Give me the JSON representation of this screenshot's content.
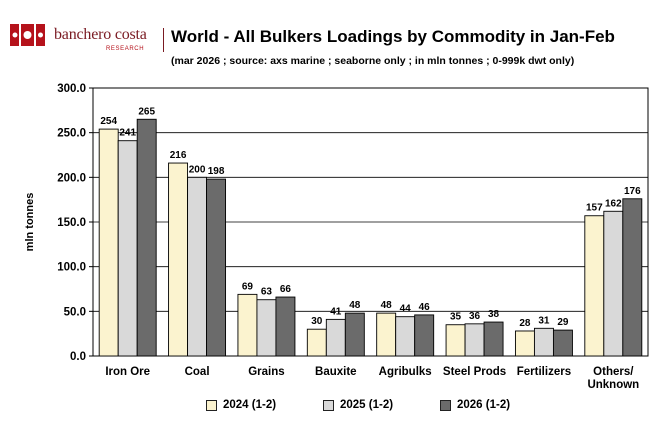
{
  "brand": {
    "name": "banchero costa",
    "tagline": "RESEARCH",
    "brand_color": "#b5121b"
  },
  "chart_data": {
    "type": "bar",
    "title": "World - All Bulkers Loadings by Commodity in Jan-Feb",
    "subtitle": "(mar 2026 ; source: axs marine ; seaborne only ; in mln tonnes ; 0-999k dwt only)",
    "xlabel": "",
    "ylabel": "mln tonnes",
    "ylim": [
      0,
      300
    ],
    "yticks": [
      "0.0",
      "50.0",
      "100.0",
      "150.0",
      "200.0",
      "250.0",
      "300.0"
    ],
    "grid": true,
    "legend_position": "bottom",
    "categories": [
      "Iron Ore",
      "Coal",
      "Grains",
      "Bauxite",
      "Agribulks",
      "Steel Prods",
      "Fertilizers",
      "Others/\nUnknown"
    ],
    "series": [
      {
        "name": "2024 (1-2)",
        "color": "#fbf3cf",
        "values": [
          254,
          216,
          69,
          30,
          48,
          35,
          28,
          157
        ]
      },
      {
        "name": "2025 (1-2)",
        "color": "#d9d9d9",
        "values": [
          241,
          200,
          63,
          41,
          44,
          36,
          31,
          162
        ]
      },
      {
        "name": "2026 (1-2)",
        "color": "#6b6b6b",
        "values": [
          265,
          198,
          66,
          48,
          46,
          38,
          29,
          176
        ]
      }
    ]
  }
}
